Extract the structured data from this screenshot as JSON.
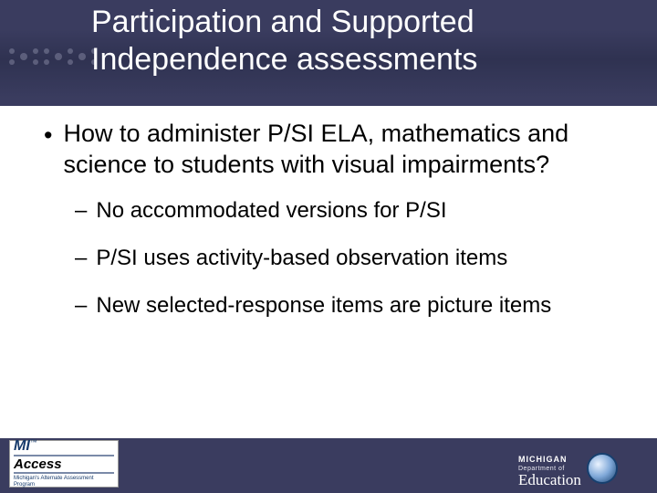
{
  "colors": {
    "slide_bg": "#3a3c5f",
    "content_bg": "#ffffff",
    "title_color": "#ffffff",
    "text_color": "#000000"
  },
  "title": "Participation and Supported Independence assessments",
  "title_fontsize": 34,
  "bullets": {
    "level1": [
      {
        "marker": "•",
        "text": "How to administer P/SI ELA, mathematics and science to students with visual impairments?"
      }
    ],
    "level2": [
      {
        "marker": "–",
        "text": "No accommodated versions for P/SI"
      },
      {
        "marker": "–",
        "text": "P/SI uses activity-based observation items"
      },
      {
        "marker": "–",
        "text": "New selected-response items are picture items"
      }
    ],
    "l1_fontsize": 27,
    "l2_fontsize": 24
  },
  "logo_left": {
    "line1": "MI",
    "line2": "Access",
    "tm": "™",
    "subtitle": "Michigan's Alternate Assessment Program"
  },
  "logo_right": {
    "dept": "Department of",
    "state": "MICHIGAN",
    "edu": "Education"
  }
}
